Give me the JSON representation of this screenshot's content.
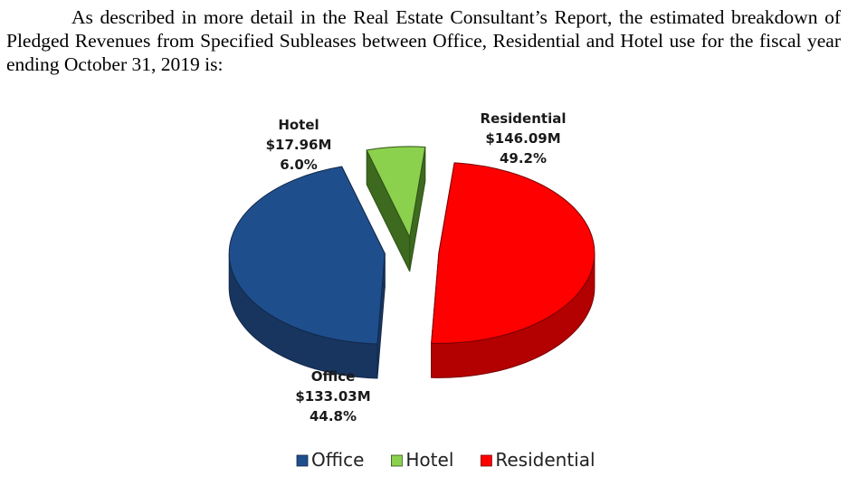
{
  "paragraph": "As described in more detail in the Real Estate Consultant’s Report, the estimated breakdown of Pledged Revenues from Specified Subleases between Office, Residential and Hotel use for the fiscal year ending October 31, 2019 is:",
  "chart_data": {
    "type": "pie",
    "title": "",
    "style": "3d-exploded",
    "legend_position": "bottom",
    "slices": [
      {
        "name": "Office",
        "value_label": "$133.03M",
        "percent_label": "44.8%",
        "value": 133.03,
        "percent": 44.8,
        "color": "#1f4e8c",
        "side_color": "#17355f",
        "edge_color": "#12294a"
      },
      {
        "name": "Hotel",
        "value_label": "$17.96M",
        "percent_label": "6.0%",
        "value": 17.96,
        "percent": 6.0,
        "color": "#8cd14e",
        "side_color": "#3d6a1e",
        "edge_color": "#2f5217"
      },
      {
        "name": "Residential",
        "value_label": "$146.09M",
        "percent_label": "49.2%",
        "value": 146.09,
        "percent": 49.2,
        "color": "#ff0000",
        "side_color": "#b30000",
        "edge_color": "#7a0000"
      }
    ]
  }
}
